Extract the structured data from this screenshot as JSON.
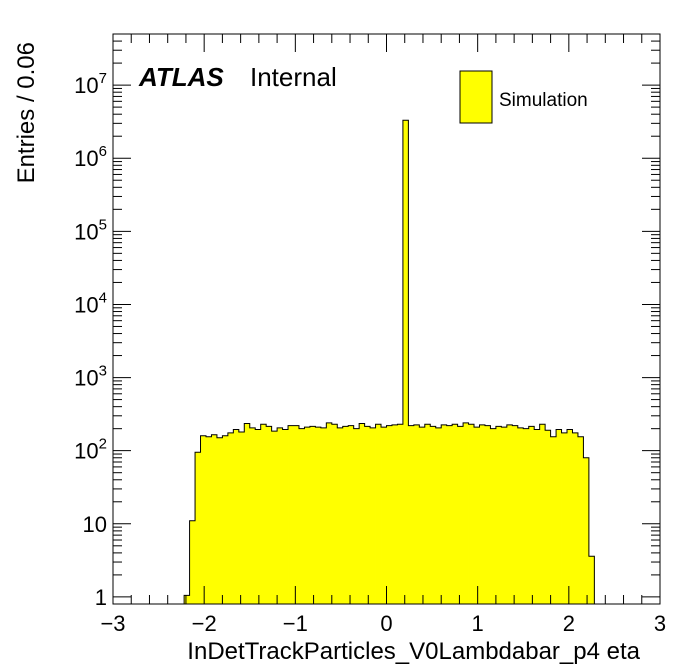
{
  "chart_data": {
    "type": "bar",
    "title": "",
    "xlabel": "InDetTrackParticles_V0Lambdabar_p4 eta",
    "ylabel": "Entries / 0.06",
    "xlim": [
      -3,
      3
    ],
    "ylim": [
      0.8,
      50000000
    ],
    "log_y": true,
    "bin_width": 0.06,
    "grid": false,
    "x_tick_labels": [
      "−3",
      "−2",
      "−1",
      "0",
      "1",
      "2",
      "3"
    ],
    "y_tick_labels": [
      {
        "value": 1,
        "base": "1",
        "exp": ""
      },
      {
        "value": 10,
        "base": "10",
        "exp": ""
      },
      {
        "value": 100,
        "base": "10",
        "exp": "2"
      },
      {
        "value": 1000,
        "base": "10",
        "exp": "3"
      },
      {
        "value": 10000,
        "base": "10",
        "exp": "4"
      },
      {
        "value": 100000,
        "base": "10",
        "exp": "5"
      },
      {
        "value": 1000000,
        "base": "10",
        "exp": "6"
      },
      {
        "value": 10000000,
        "base": "10",
        "exp": "7"
      }
    ],
    "series": [
      {
        "name": "Simulation",
        "color": "#ffff00",
        "edges_start": -2.22,
        "values": [
          1.05,
          11,
          95,
          160,
          155,
          165,
          150,
          160,
          175,
          195,
          180,
          235,
          205,
          195,
          230,
          215,
          185,
          205,
          195,
          220,
          220,
          200,
          210,
          215,
          210,
          205,
          240,
          230,
          205,
          215,
          220,
          200,
          235,
          215,
          205,
          230,
          210,
          220,
          225,
          230,
          3300000,
          220,
          225,
          210,
          230,
          215,
          205,
          225,
          220,
          230,
          215,
          240,
          230,
          210,
          225,
          220,
          200,
          215,
          210,
          225,
          220,
          205,
          200,
          215,
          195,
          230,
          190,
          155,
          195,
          175,
          195,
          175,
          155,
          80,
          3.6
        ]
      }
    ]
  },
  "labels": {
    "atlas": "ATLAS",
    "internal": "Internal"
  },
  "legend": {
    "entry": "Simulation",
    "placement": "top-right"
  }
}
